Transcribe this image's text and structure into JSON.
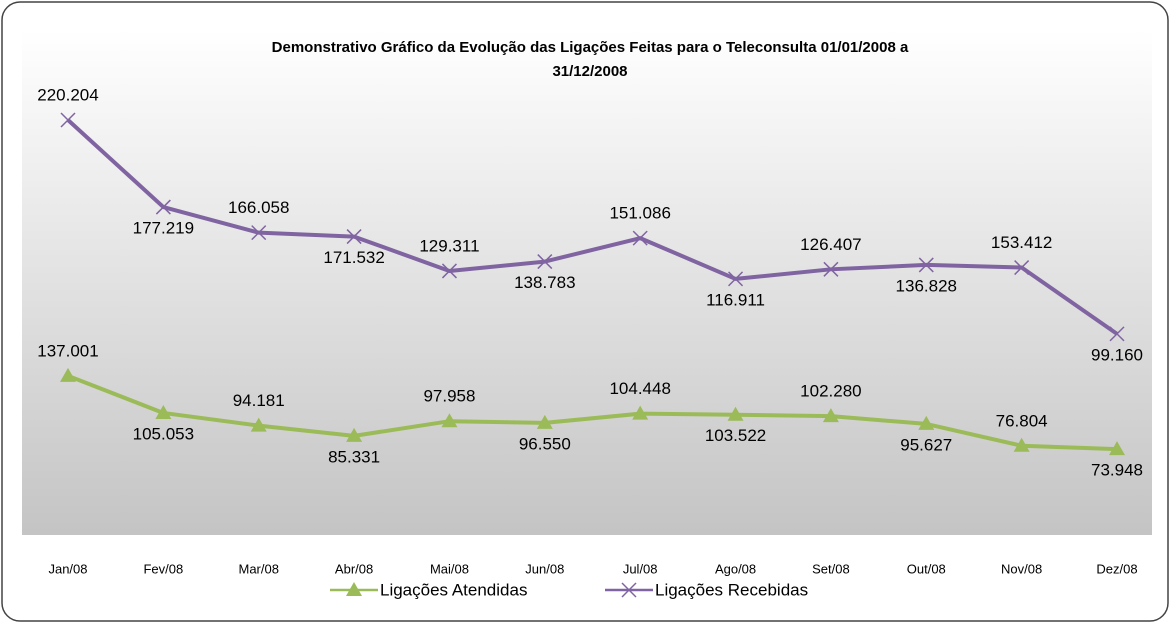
{
  "chart_data": {
    "type": "line",
    "stacked": true,
    "title": "Demonstrativo Gráfico da Evolução das Ligações Feitas para o Teleconsulta 01/01/2008 a 31/12/2008",
    "categories": [
      "Jan/08",
      "Fev/08",
      "Mar/08",
      "Abr/08",
      "Mai/08",
      "Jun/08",
      "Jul/08",
      "Ago/08",
      "Set/08",
      "Out/08",
      "Nov/08",
      "Dez/08"
    ],
    "series": [
      {
        "name": "Ligações Atendidas",
        "color": "#9bbb59",
        "marker": "triangle",
        "values": [
          137001,
          105053,
          94181,
          85331,
          97958,
          96550,
          104448,
          103522,
          102280,
          95627,
          76804,
          73948
        ],
        "value_labels": [
          "137.001",
          "105.053",
          "94.181",
          "85.331",
          "97.958",
          "96.550",
          "104.448",
          "103.522",
          "102.280",
          "95.627",
          "76.804",
          "73.948"
        ]
      },
      {
        "name": "Ligações Recebidas",
        "color": "#8064a2",
        "marker": "x",
        "values": [
          220204,
          177219,
          166058,
          171532,
          129311,
          138783,
          151086,
          116911,
          126407,
          136828,
          153412,
          99160
        ],
        "value_labels": [
          "220.204",
          "177.219",
          "166.058",
          "171.532",
          "129.311",
          "138.783",
          "151.086",
          "116.911",
          "126.407",
          "136.828",
          "153.412",
          "99.160"
        ]
      }
    ],
    "legend": "bottom"
  }
}
